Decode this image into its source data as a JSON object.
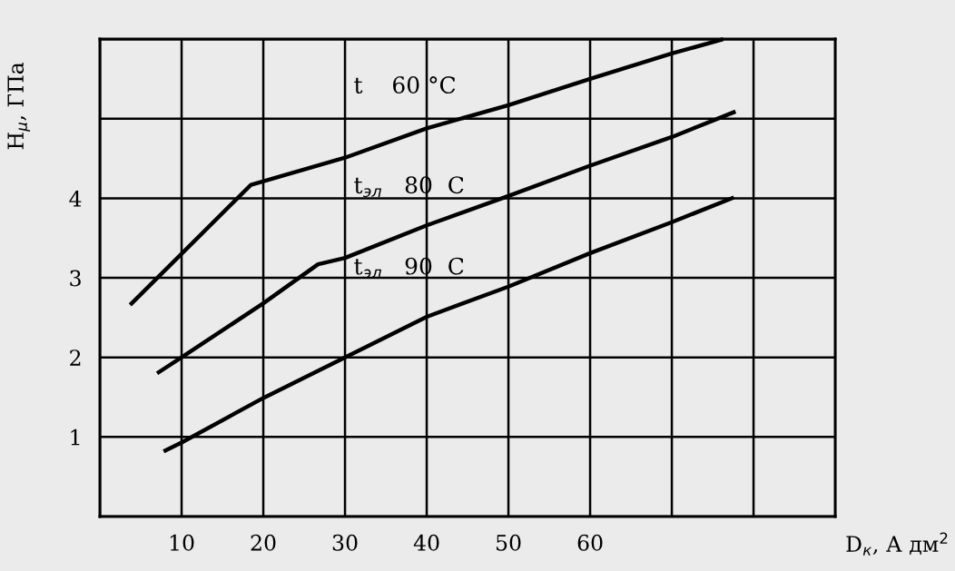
{
  "chart_data": {
    "type": "line",
    "xlabel": "D$_{к}$, А дм$^{2}$",
    "ylabel": "H$_{μ}$, ГПа",
    "annotations": [
      "t    60 °C",
      "t$_{эл}$   80  C",
      "t$_{эл}$   90  C"
    ],
    "series": [
      {
        "color": "#000000",
        "x": [
          3.7,
          18.5,
          30,
          40,
          50,
          60,
          70,
          76.3
        ],
        "values": [
          2.66,
          4.17,
          4.51,
          4.88,
          5.17,
          5.5,
          5.82,
          6.0
        ]
      },
      {
        "color": "#000000",
        "x": [
          7.0,
          10,
          20,
          26.7,
          30,
          40,
          50,
          60,
          70,
          77.8
        ],
        "values": [
          1.8,
          2.0,
          2.68,
          3.17,
          3.25,
          3.66,
          4.03,
          4.41,
          4.77,
          5.09
        ]
      },
      {
        "color": "#000000",
        "x": [
          7.8,
          10,
          20,
          30,
          40,
          50,
          60,
          70,
          77.6
        ],
        "values": [
          0.82,
          0.93,
          1.49,
          2.0,
          2.51,
          2.89,
          3.31,
          3.7,
          4.01
        ]
      }
    ],
    "xlim": [
      0,
      90
    ],
    "xticks": [
      {
        "value": 0,
        "label": null
      },
      10,
      20,
      30,
      40,
      50,
      60,
      {
        "value": 70,
        "label": null
      },
      {
        "value": 80,
        "label": null
      }
    ],
    "ylim": [
      0,
      6
    ],
    "yticks": [
      {
        "value": 0,
        "label": null
      },
      1,
      2,
      3,
      4,
      {
        "value": 5,
        "label": null
      }
    ],
    "grid": true,
    "line_style": "solid",
    "marker": "none"
  }
}
